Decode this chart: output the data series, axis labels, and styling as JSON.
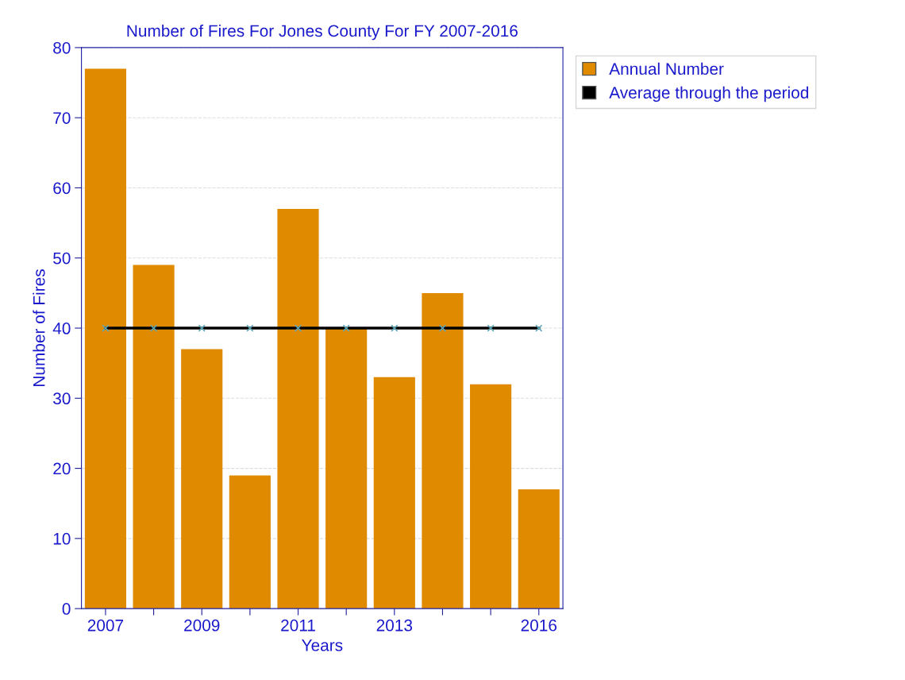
{
  "chart_data": {
    "type": "bar",
    "title": "Number of Fires For Jones County For FY 2007-2016",
    "xlabel": "Years",
    "ylabel": "Number of Fires",
    "categories": [
      "2007",
      null,
      "2009",
      null,
      "2011",
      null,
      "2013",
      null,
      null,
      "2016"
    ],
    "series": [
      {
        "name": "Annual Number",
        "color": "#e08a00",
        "values": [
          77,
          49,
          37,
          19,
          57,
          40,
          33,
          45,
          32,
          17
        ]
      },
      {
        "name": "Average through the period",
        "type": "line",
        "color": "#000000",
        "colors": [
          "#5fa8b8",
          "#5fa8b8",
          "#5fa8b8",
          "#5fa8b8",
          "#5fa8b8",
          "#5fa8b8",
          "#5fa8b8",
          "#5fa8b8",
          "#5fa8b8",
          "#5fa8b8"
        ],
        "marker": "cross",
        "values": [
          40,
          40,
          40,
          40,
          40,
          40,
          40,
          40,
          40,
          40
        ]
      }
    ],
    "ylim": [
      0,
      80
    ],
    "yticks": [
      0,
      10,
      20,
      30,
      40,
      50,
      60,
      70,
      80
    ],
    "grid": "y",
    "legend": "top right"
  }
}
